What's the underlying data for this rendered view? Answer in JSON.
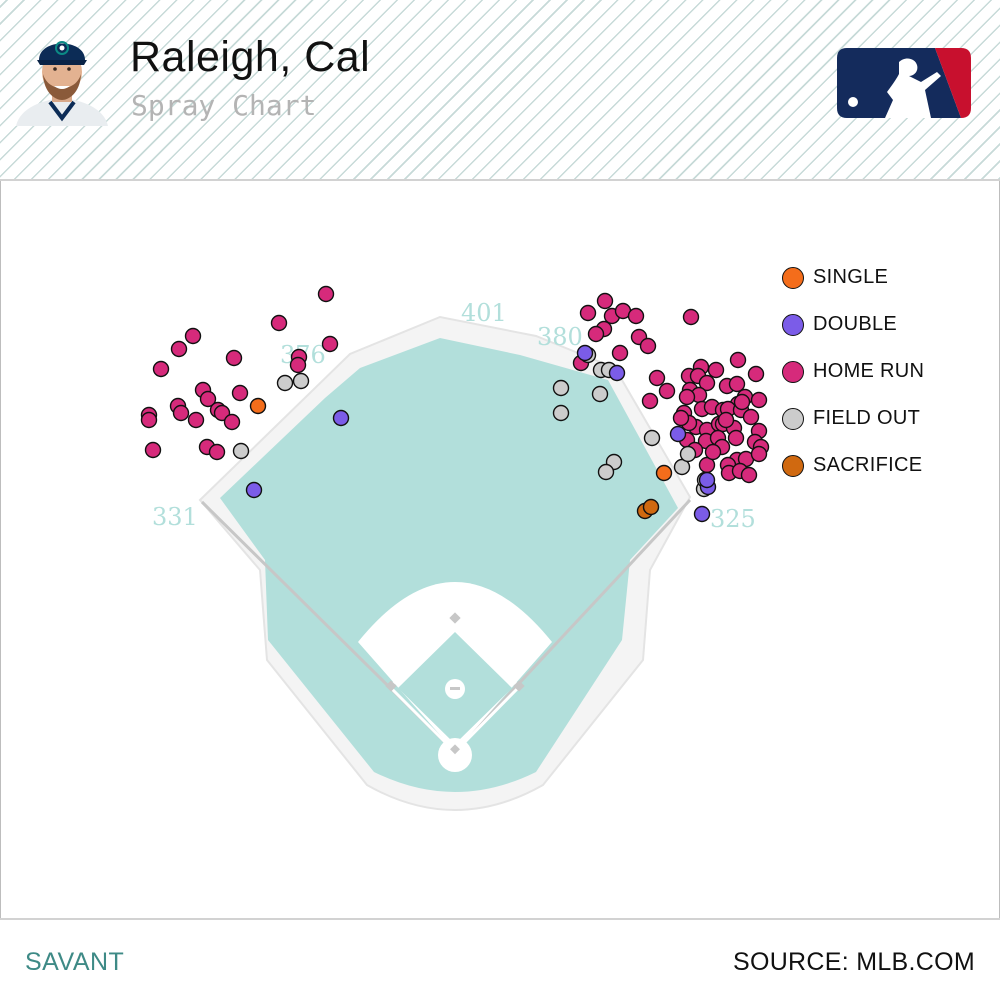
{
  "header": {
    "player_name": "Raleigh, Cal",
    "subtitle": "Spray Chart"
  },
  "logo": {
    "name": "mlb-logo",
    "colors": {
      "left": "#142b5c",
      "right": "#c8102e"
    }
  },
  "footer": {
    "left": "SAVANT",
    "right": "SOURCE: MLB.COM"
  },
  "colors": {
    "field_grass": "#b2dfdb",
    "dirt": "#ffffff",
    "warning_track": "#f4f4f4",
    "distance_label": "#b2dfdb"
  },
  "chart_data": {
    "type": "scatter",
    "title": "Spray Chart",
    "distance_labels": [
      "331",
      "376",
      "401",
      "380",
      "325"
    ],
    "legend": [
      {
        "key": "single",
        "label": "SINGLE",
        "color": "#f46d1b"
      },
      {
        "key": "double",
        "label": "DOUBLE",
        "color": "#7b5ce8"
      },
      {
        "key": "home_run",
        "label": "HOME RUN",
        "color": "#d62a7b"
      },
      {
        "key": "field_out",
        "label": "FIELD OUT",
        "color": "#cccccc"
      },
      {
        "key": "sacrifice",
        "label": "SACRIFICE",
        "color": "#d06910"
      }
    ],
    "points": {
      "single": [
        [
          258,
          406
        ],
        [
          664,
          473
        ]
      ],
      "double": [
        [
          341,
          418
        ],
        [
          254,
          490
        ],
        [
          585,
          353
        ],
        [
          617,
          373
        ],
        [
          678,
          434
        ],
        [
          708,
          487
        ],
        [
          707,
          480
        ],
        [
          702,
          514
        ]
      ],
      "sacrifice": [
        [
          645,
          511
        ],
        [
          651,
          507
        ]
      ],
      "field_out": [
        [
          241,
          451
        ],
        [
          285,
          383
        ],
        [
          301,
          381
        ],
        [
          588,
          355
        ],
        [
          561,
          388
        ],
        [
          561,
          413
        ],
        [
          600,
          394
        ],
        [
          601,
          370
        ],
        [
          609,
          370
        ],
        [
          652,
          438
        ],
        [
          614,
          462
        ],
        [
          606,
          472
        ],
        [
          682,
          467
        ],
        [
          688,
          454
        ],
        [
          704,
          489
        ],
        [
          705,
          480
        ]
      ],
      "home_run": [
        [
          326,
          294
        ],
        [
          279,
          323
        ],
        [
          330,
          344
        ],
        [
          299,
          357
        ],
        [
          298,
          365
        ],
        [
          193,
          336
        ],
        [
          179,
          349
        ],
        [
          161,
          369
        ],
        [
          234,
          358
        ],
        [
          240,
          393
        ],
        [
          203,
          390
        ],
        [
          208,
          399
        ],
        [
          218,
          410
        ],
        [
          222,
          413
        ],
        [
          178,
          406
        ],
        [
          181,
          413
        ],
        [
          196,
          420
        ],
        [
          149,
          415
        ],
        [
          149,
          420
        ],
        [
          232,
          422
        ],
        [
          207,
          447
        ],
        [
          217,
          452
        ],
        [
          153,
          450
        ],
        [
          605,
          301
        ],
        [
          588,
          313
        ],
        [
          612,
          316
        ],
        [
          623,
          311
        ],
        [
          636,
          316
        ],
        [
          604,
          329
        ],
        [
          596,
          334
        ],
        [
          639,
          337
        ],
        [
          648,
          346
        ],
        [
          581,
          363
        ],
        [
          620,
          353
        ],
        [
          657,
          378
        ],
        [
          667,
          391
        ],
        [
          650,
          401
        ],
        [
          691,
          317
        ],
        [
          701,
          367
        ],
        [
          716,
          370
        ],
        [
          738,
          360
        ],
        [
          689,
          376
        ],
        [
          698,
          376
        ],
        [
          690,
          390
        ],
        [
          707,
          383
        ],
        [
          699,
          395
        ],
        [
          727,
          386
        ],
        [
          737,
          384
        ],
        [
          756,
          374
        ],
        [
          745,
          397
        ],
        [
          738,
          404
        ],
        [
          684,
          413
        ],
        [
          702,
          409
        ],
        [
          712,
          407
        ],
        [
          723,
          410
        ],
        [
          728,
          409
        ],
        [
          741,
          410
        ],
        [
          759,
          400
        ],
        [
          696,
          427
        ],
        [
          689,
          423
        ],
        [
          707,
          430
        ],
        [
          719,
          424
        ],
        [
          723,
          424
        ],
        [
          734,
          428
        ],
        [
          751,
          417
        ],
        [
          759,
          431
        ],
        [
          687,
          440
        ],
        [
          706,
          441
        ],
        [
          718,
          438
        ],
        [
          736,
          438
        ],
        [
          755,
          442
        ],
        [
          761,
          447
        ],
        [
          695,
          450
        ],
        [
          722,
          447
        ],
        [
          737,
          460
        ],
        [
          746,
          459
        ],
        [
          759,
          454
        ],
        [
          707,
          465
        ],
        [
          728,
          465
        ],
        [
          729,
          473
        ],
        [
          740,
          471
        ],
        [
          749,
          475
        ],
        [
          687,
          397
        ],
        [
          742,
          402
        ],
        [
          726,
          420
        ],
        [
          713,
          452
        ],
        [
          681,
          418
        ]
      ]
    }
  }
}
